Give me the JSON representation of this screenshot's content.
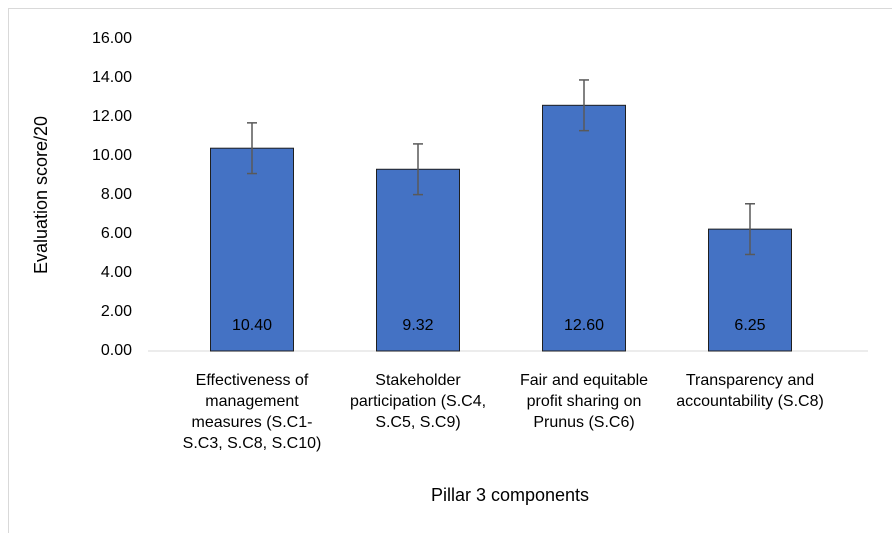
{
  "chart_data": {
    "type": "bar",
    "x_label": "Pillar 3 components",
    "y_label": "Evaluation score/20",
    "categories": [
      "Effectiveness of management measures (S.C1-S.C3, S.C8, S.C10)",
      "Stakeholder participation (S.C4, S.C5, S.C9)",
      "Fair and equitable profit sharing on Prunus (S.C6)",
      "Transparency and accountability (S.C8)"
    ],
    "values": [
      10.4,
      9.32,
      12.6,
      6.25
    ],
    "value_labels": [
      "10.40",
      "9.32",
      "12.60",
      "6.25"
    ],
    "errors": [
      1.3,
      1.3,
      1.3,
      1.3
    ],
    "color": "#4472c4",
    "ylim": [
      0,
      16
    ],
    "yticks": [
      {
        "value": 0,
        "label": "0.00"
      },
      {
        "value": 2,
        "label": "2.00"
      },
      {
        "value": 4,
        "label": "4.00"
      },
      {
        "value": 6,
        "label": "6.00"
      },
      {
        "value": 8,
        "label": "8.00"
      },
      {
        "value": 10,
        "label": "10.00"
      },
      {
        "value": 12,
        "label": "12.00"
      },
      {
        "value": 14,
        "label": "14.00"
      },
      {
        "value": 16,
        "label": "16.00"
      }
    ],
    "grid": false
  }
}
